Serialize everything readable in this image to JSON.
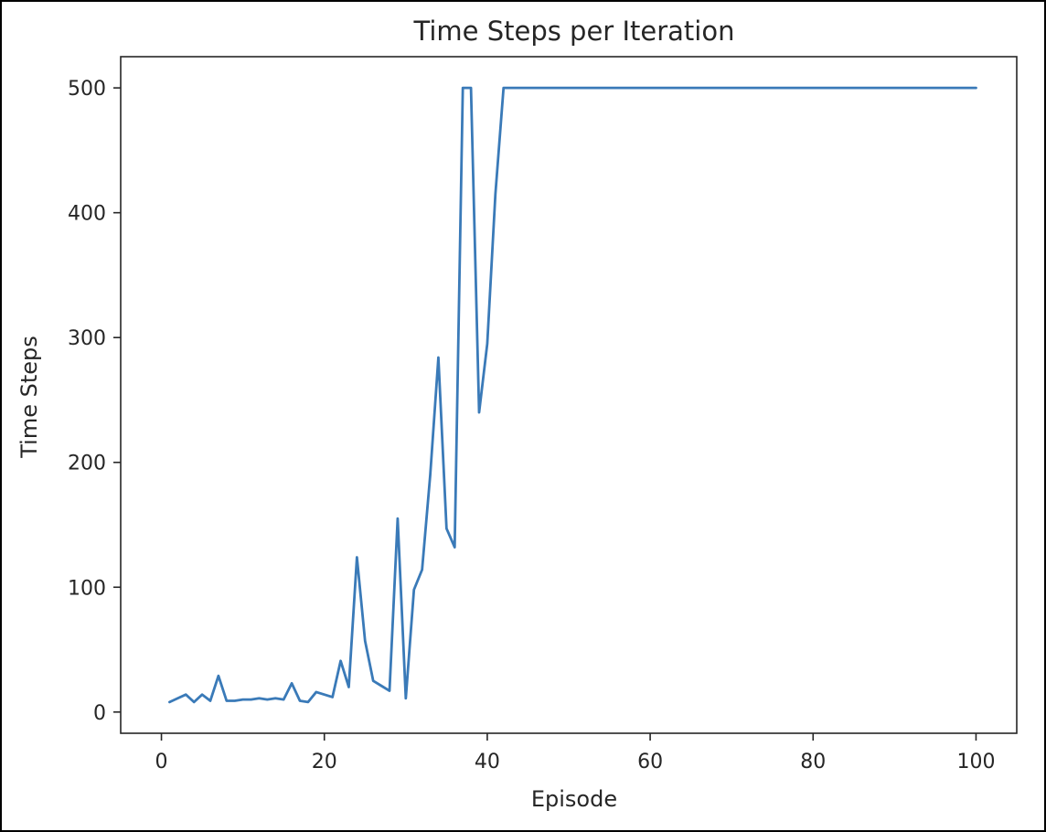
{
  "chart_data": {
    "type": "line",
    "title": "Time Steps per Iteration",
    "xlabel": "Episode",
    "ylabel": "Time Steps",
    "xlim": [
      -5,
      105
    ],
    "ylim": [
      -17,
      525
    ],
    "xticks": [
      0,
      20,
      40,
      60,
      80,
      100
    ],
    "yticks": [
      0,
      100,
      200,
      300,
      400,
      500
    ],
    "grid": false,
    "legend": "none",
    "colors": {
      "line": "#3a7ab8",
      "axis": "#262626"
    },
    "series": [
      {
        "x": [
          1,
          2,
          3,
          4,
          5,
          6,
          7,
          8,
          9,
          10,
          11,
          12,
          13,
          14,
          15,
          16,
          17,
          18,
          19,
          20,
          21,
          22,
          23,
          24,
          25,
          26,
          27,
          28,
          29,
          30,
          31,
          32,
          33,
          34,
          35,
          36,
          37,
          38,
          39,
          40,
          41,
          42,
          43,
          44,
          45,
          46,
          47,
          48,
          49,
          50,
          51,
          52,
          53,
          54,
          55,
          56,
          57,
          58,
          59,
          60,
          61,
          62,
          63,
          64,
          65,
          66,
          67,
          68,
          69,
          70,
          71,
          72,
          73,
          74,
          75,
          76,
          77,
          78,
          79,
          80,
          81,
          82,
          83,
          84,
          85,
          86,
          87,
          88,
          89,
          90,
          91,
          92,
          93,
          94,
          95,
          96,
          97,
          98,
          99,
          100
        ],
        "y": [
          8,
          11,
          14,
          8,
          14,
          9,
          29,
          9,
          9,
          10,
          10,
          11,
          10,
          11,
          10,
          23,
          9,
          8,
          16,
          14,
          12,
          41,
          20,
          124,
          57,
          25,
          21,
          17,
          155,
          11,
          98,
          114,
          190,
          284,
          147,
          132,
          500,
          500,
          240,
          295,
          415,
          500,
          500,
          500,
          500,
          500,
          500,
          500,
          500,
          500,
          500,
          500,
          500,
          500,
          500,
          500,
          500,
          500,
          500,
          500,
          500,
          500,
          500,
          500,
          500,
          500,
          500,
          500,
          500,
          500,
          500,
          500,
          500,
          500,
          500,
          500,
          500,
          500,
          500,
          500,
          500,
          500,
          500,
          500,
          500,
          500,
          500,
          500,
          500,
          500,
          500,
          500,
          500,
          500,
          500,
          500,
          500,
          500,
          500,
          500
        ]
      }
    ]
  }
}
